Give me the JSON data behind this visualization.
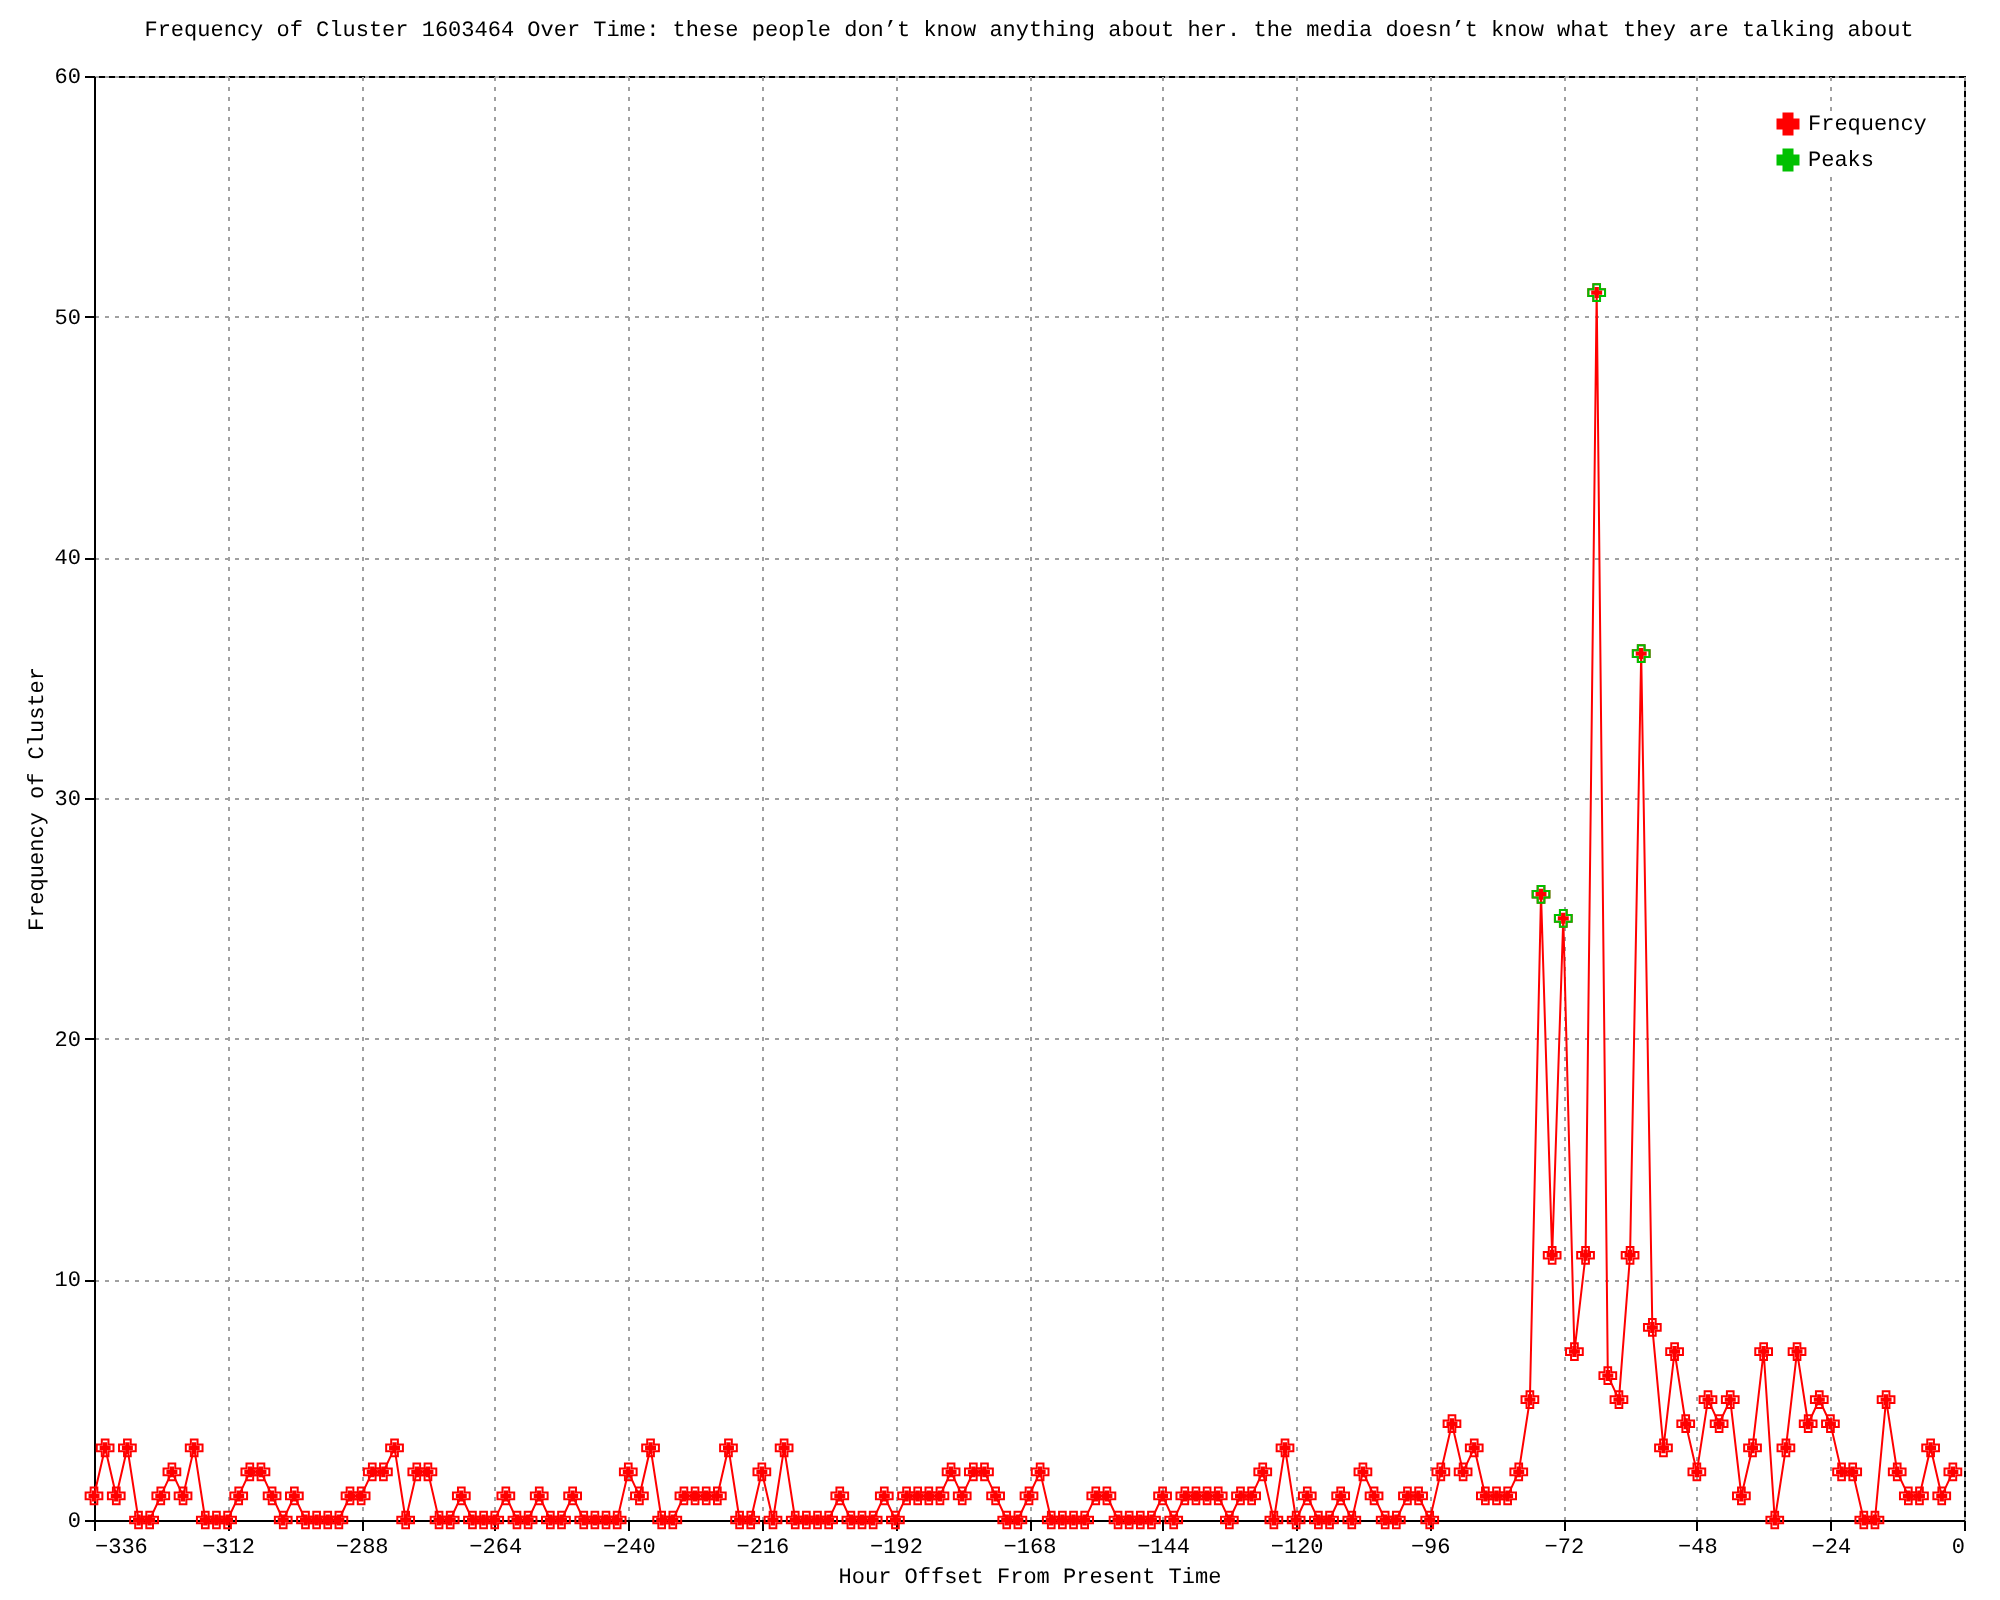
{
  "chart_data": {
    "type": "line",
    "title": "Frequency of Cluster 1603464 Over Time: these people don’t know anything about her. the media doesn’t know what they are talking about",
    "xlabel": "Hour Offset From Present Time",
    "ylabel": "Frequency of Cluster",
    "xlim": [
      -336,
      0
    ],
    "ylim": [
      0,
      60
    ],
    "xticks": [
      -336,
      -312,
      -288,
      -264,
      -240,
      -216,
      -192,
      -168,
      -144,
      -120,
      -96,
      -72,
      -48,
      -24,
      0
    ],
    "yticks": [
      0,
      10,
      20,
      30,
      40,
      50,
      60
    ],
    "grid": true,
    "legend": "top right",
    "series": [
      {
        "name": "Frequency",
        "color": "#ff0000",
        "marker": "cross",
        "x": [
          -336,
          -334,
          -332,
          -330,
          -328,
          -326,
          -324,
          -322,
          -320,
          -318,
          -316,
          -314,
          -312,
          -310,
          -308,
          -306,
          -304,
          -302,
          -300,
          -298,
          -296,
          -294,
          -292,
          -290,
          -288,
          -286,
          -284,
          -282,
          -280,
          -278,
          -276,
          -274,
          -272,
          -270,
          -268,
          -266,
          -264,
          -262,
          -260,
          -258,
          -256,
          -254,
          -252,
          -250,
          -248,
          -246,
          -244,
          -242,
          -240,
          -238,
          -236,
          -234,
          -232,
          -230,
          -228,
          -226,
          -224,
          -222,
          -220,
          -218,
          -216,
          -214,
          -212,
          -210,
          -208,
          -206,
          -204,
          -202,
          -200,
          -198,
          -196,
          -194,
          -192,
          -190,
          -188,
          -186,
          -184,
          -182,
          -180,
          -178,
          -176,
          -174,
          -172,
          -170,
          -168,
          -166,
          -164,
          -162,
          -160,
          -158,
          -156,
          -154,
          -152,
          -150,
          -148,
          -146,
          -144,
          -142,
          -140,
          -138,
          -136,
          -134,
          -132,
          -130,
          -128,
          -126,
          -124,
          -122,
          -120,
          -118,
          -116,
          -114,
          -112,
          -110,
          -108,
          -106,
          -104,
          -102,
          -100,
          -98,
          -96,
          -94,
          -92,
          -90,
          -88,
          -86,
          -84,
          -82,
          -80,
          -78,
          -76,
          -74,
          -72,
          -70,
          -68,
          -66,
          -64,
          -62,
          -60,
          -58,
          -56,
          -54,
          -52,
          -50,
          -48,
          -46,
          -44,
          -42,
          -40,
          -38,
          -36,
          -34,
          -32,
          -30,
          -28,
          -26,
          -24,
          -22,
          -20,
          -18,
          -16,
          -14,
          -12,
          -10,
          -8,
          -6,
          -4,
          -2
        ],
        "values": [
          1,
          3,
          1,
          3,
          0,
          0,
          1,
          2,
          1,
          3,
          0,
          0,
          0,
          1,
          2,
          2,
          1,
          0,
          1,
          0,
          0,
          0,
          0,
          1,
          1,
          2,
          2,
          3,
          0,
          2,
          2,
          0,
          0,
          1,
          0,
          0,
          0,
          1,
          0,
          0,
          1,
          0,
          0,
          1,
          0,
          0,
          0,
          0,
          2,
          1,
          3,
          0,
          0,
          1,
          1,
          1,
          1,
          3,
          0,
          0,
          2,
          0,
          3,
          0,
          0,
          0,
          0,
          1,
          0,
          0,
          0,
          1,
          0,
          1,
          1,
          1,
          1,
          2,
          1,
          2,
          2,
          1,
          0,
          0,
          1,
          2,
          0,
          0,
          0,
          0,
          1,
          1,
          0,
          0,
          0,
          0,
          1,
          0,
          1,
          1,
          1,
          1,
          0,
          1,
          1,
          2,
          0,
          3,
          0,
          1,
          0,
          0,
          1,
          0,
          2,
          1,
          0,
          0,
          1,
          1,
          0,
          2,
          4,
          2,
          3,
          1,
          1,
          1,
          2,
          5,
          26,
          11,
          25,
          7,
          11,
          51,
          6,
          5,
          11,
          36,
          8,
          3,
          7,
          4,
          2,
          5,
          4,
          5,
          1,
          3,
          7,
          0,
          3,
          7,
          4,
          5,
          4,
          2,
          2,
          0,
          0,
          5,
          2,
          1,
          1,
          3,
          1,
          2
        ]
      },
      {
        "name": "Peaks",
        "type": "scatter",
        "color": "#00c000",
        "marker": "cross",
        "x": [
          -76,
          -72,
          -66,
          -58
        ],
        "values": [
          26,
          25,
          51,
          36
        ]
      }
    ]
  }
}
